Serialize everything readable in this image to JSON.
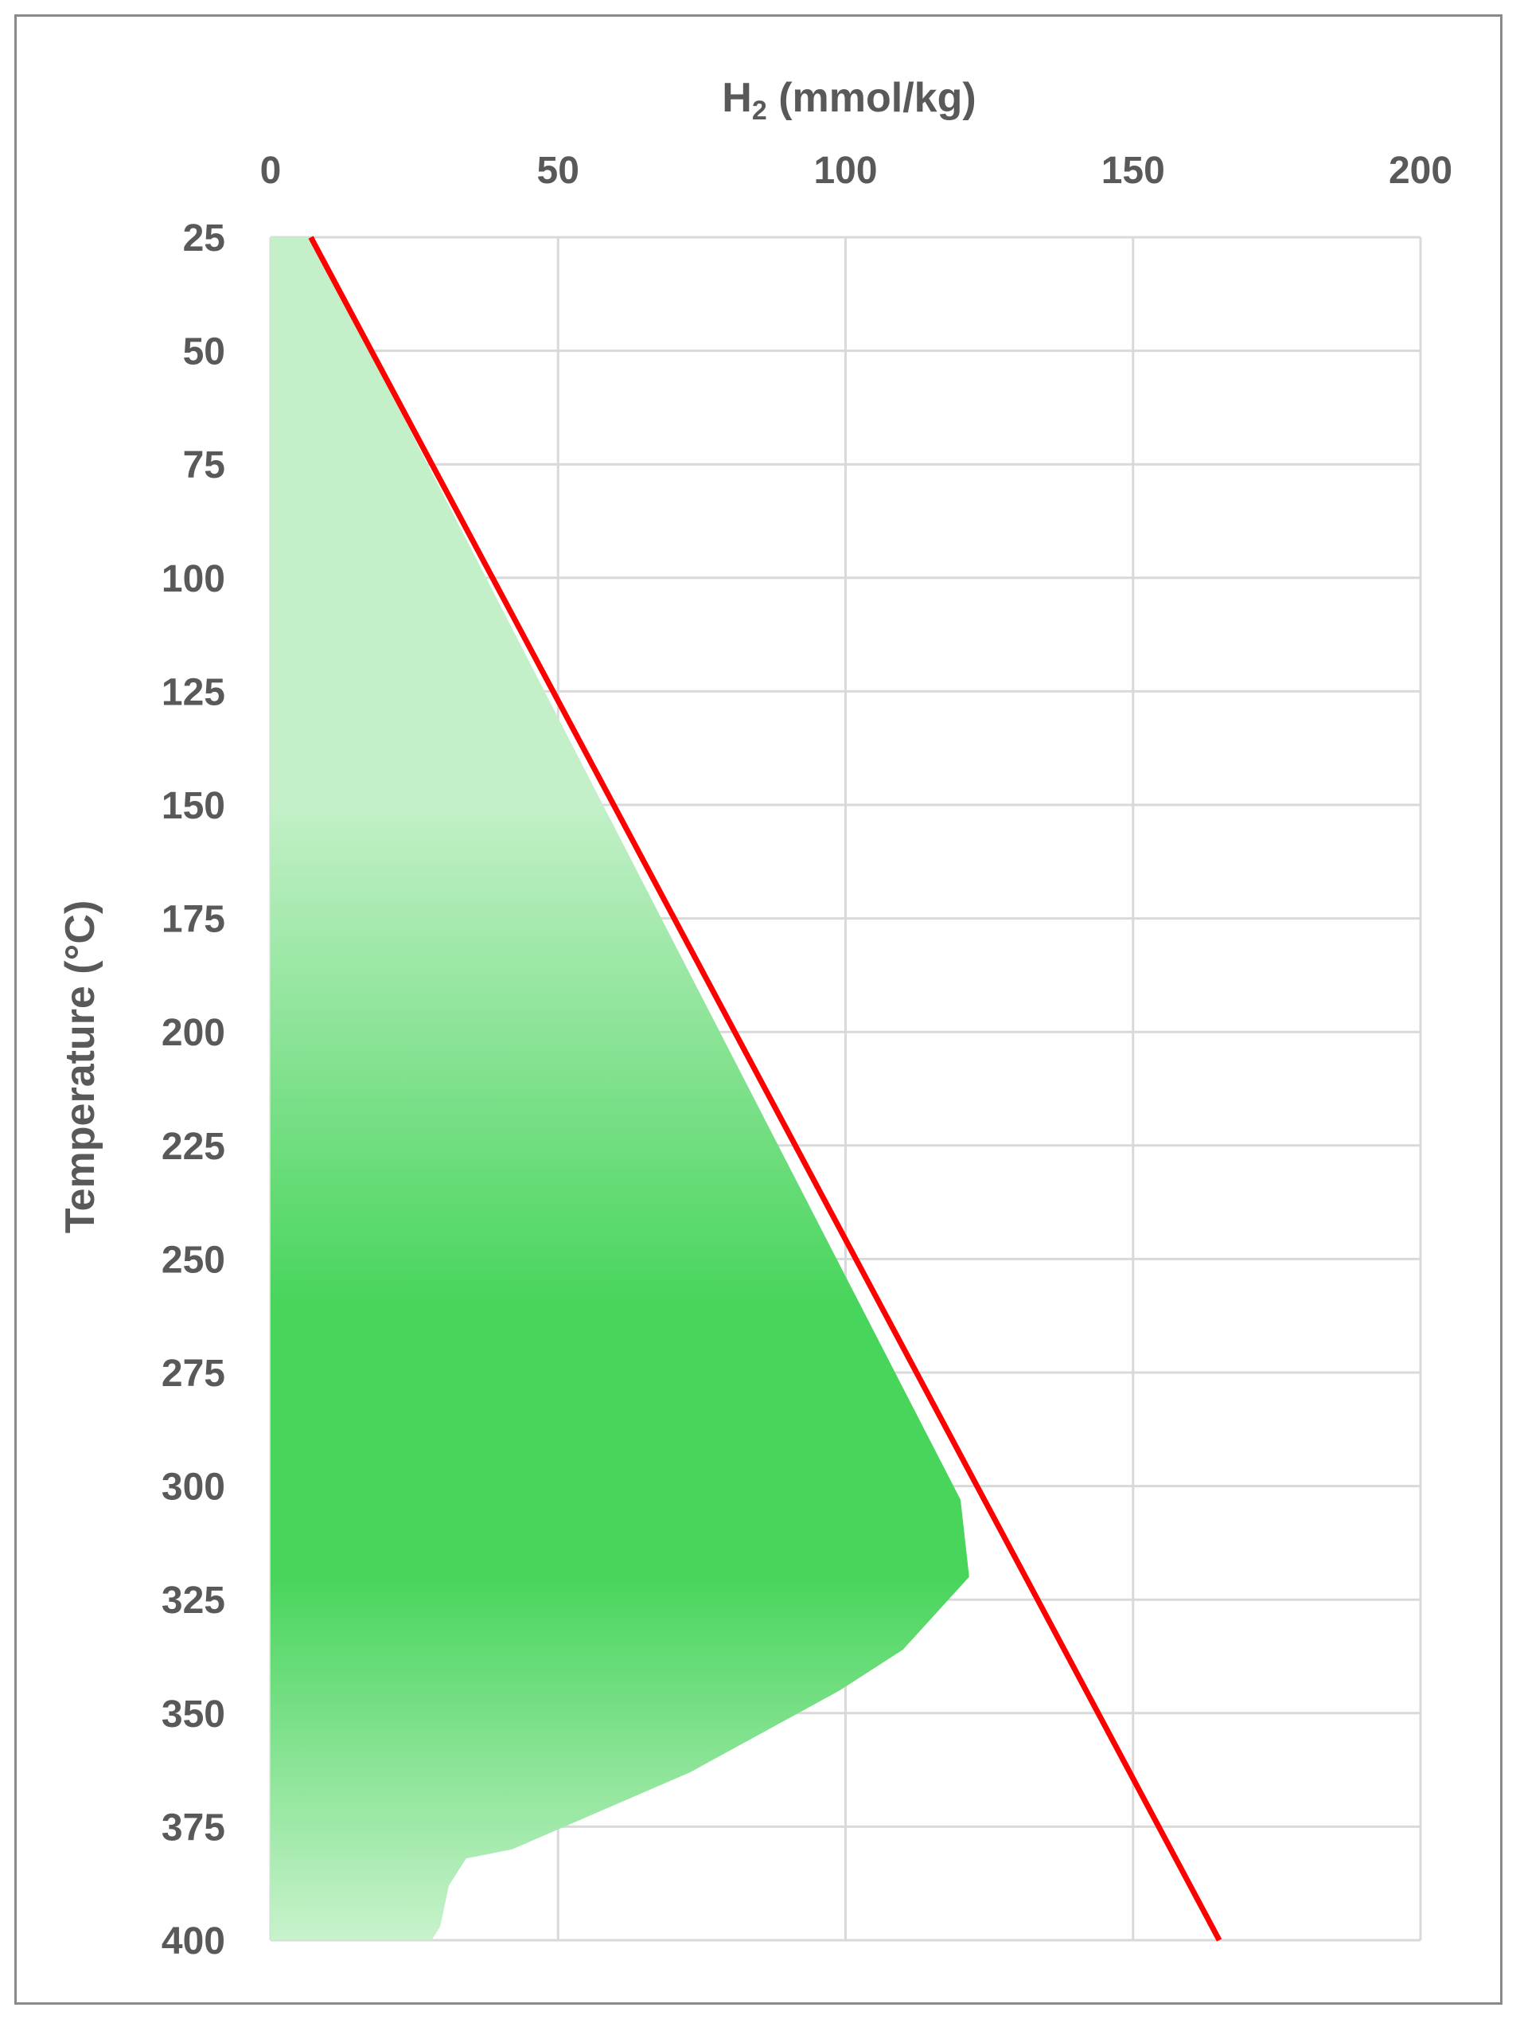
{
  "chart_data": {
    "type": "area",
    "x_axis": {
      "label_main": "H",
      "label_sub": "2",
      "label_rest": " (mmol/kg)",
      "position": "top",
      "range": [
        0,
        200
      ],
      "ticks": [
        0,
        50,
        100,
        150,
        200
      ]
    },
    "y_axis": {
      "label": "Temperature (°C)",
      "reversed": true,
      "range": [
        25,
        400
      ],
      "ticks": [
        25,
        50,
        75,
        100,
        125,
        150,
        175,
        200,
        225,
        250,
        275,
        300,
        325,
        350,
        375,
        400
      ]
    },
    "grid": true,
    "legend": "none",
    "series": [
      {
        "type": "line",
        "color": "#ff0000",
        "points": [
          [
            7,
            25
          ],
          [
            165,
            400
          ]
        ]
      },
      {
        "type": "area",
        "color": "#46d35a",
        "gradient_stops": [
          {
            "t": 25,
            "color": "#c3f0c8"
          },
          {
            "t": 150,
            "color": "#c3f0c8"
          },
          {
            "t": 260,
            "color": "#48d55c"
          },
          {
            "t": 320,
            "color": "#48d55c"
          },
          {
            "t": 400,
            "color": "#c8f2cc"
          }
        ],
        "points": [
          [
            7,
            25
          ],
          [
            120,
            303
          ],
          [
            121.5,
            320
          ],
          [
            110,
            336
          ],
          [
            99,
            345
          ],
          [
            73,
            363
          ],
          [
            42,
            380
          ],
          [
            34,
            382
          ],
          [
            31,
            388
          ],
          [
            29.5,
            397
          ],
          [
            28,
            400
          ]
        ]
      }
    ]
  }
}
